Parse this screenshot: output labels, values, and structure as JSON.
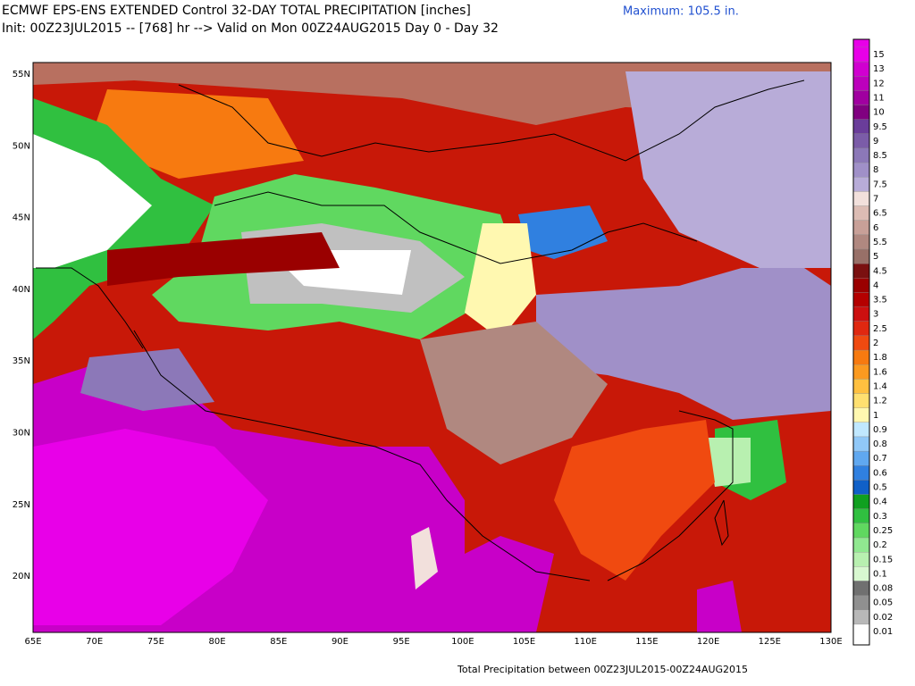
{
  "header": {
    "title_line1": "ECMWF EPS-ENS EXTENDED Control 32-DAY TOTAL PRECIPITATION [inches]",
    "title_line2": "Init: 00Z23JUL2015 -- [768] hr --> Valid on Mon 00Z24AUG2015  Day 0 - Day 32",
    "maximum": "Maximum: 105.5 in."
  },
  "map": {
    "lat_labels": [
      "55N",
      "50N",
      "45N",
      "40N",
      "35N",
      "30N",
      "25N",
      "20N"
    ],
    "lon_labels": [
      "65E",
      "70E",
      "75E",
      "80E",
      "85E",
      "90E",
      "95E",
      "100E",
      "105E",
      "110E",
      "115E",
      "120E",
      "125E",
      "130E"
    ]
  },
  "colorbar": {
    "levels": [
      {
        "label": "15",
        "color": "#e800e8"
      },
      {
        "label": "13",
        "color": "#d000d0"
      },
      {
        "label": "12",
        "color": "#bc00bc"
      },
      {
        "label": "11",
        "color": "#a000a0"
      },
      {
        "label": "10",
        "color": "#800080"
      },
      {
        "label": "9.5",
        "color": "#6a3d9a"
      },
      {
        "label": "9",
        "color": "#7b5ca8"
      },
      {
        "label": "8.5",
        "color": "#8c78b8"
      },
      {
        "label": "8",
        "color": "#a090c8"
      },
      {
        "label": "7.5",
        "color": "#b8acd8"
      },
      {
        "label": "7",
        "color": "#f2e0dc"
      },
      {
        "label": "6.5",
        "color": "#dcbcb4"
      },
      {
        "label": "6",
        "color": "#c8a098"
      },
      {
        "label": "5.5",
        "color": "#b08880"
      },
      {
        "label": "5",
        "color": "#987068"
      },
      {
        "label": "4.5",
        "color": "#7a1010"
      },
      {
        "label": "4",
        "color": "#9a0000"
      },
      {
        "label": "3.5",
        "color": "#b40000"
      },
      {
        "label": "3",
        "color": "#cc1010"
      },
      {
        "label": "2.5",
        "color": "#e02810"
      },
      {
        "label": "2",
        "color": "#f04a10"
      },
      {
        "label": "1.8",
        "color": "#f77a10"
      },
      {
        "label": "1.6",
        "color": "#fb9a20"
      },
      {
        "label": "1.4",
        "color": "#ffc040"
      },
      {
        "label": "1.2",
        "color": "#ffe070"
      },
      {
        "label": "1",
        "color": "#fff8b0"
      },
      {
        "label": "0.9",
        "color": "#c0e8ff"
      },
      {
        "label": "0.8",
        "color": "#90c8f8"
      },
      {
        "label": "0.7",
        "color": "#60a8f0"
      },
      {
        "label": "0.6",
        "color": "#3080e0"
      },
      {
        "label": "0.5",
        "color": "#1060c8"
      },
      {
        "label": "0.4",
        "color": "#10a020"
      },
      {
        "label": "0.3",
        "color": "#30c040"
      },
      {
        "label": "0.25",
        "color": "#60d860"
      },
      {
        "label": "0.2",
        "color": "#90e890"
      },
      {
        "label": "0.15",
        "color": "#b8f0b0"
      },
      {
        "label": "0.1",
        "color": "#d8f8d0"
      },
      {
        "label": "0.08",
        "color": "#707070"
      },
      {
        "label": "0.05",
        "color": "#909090"
      },
      {
        "label": "0.02",
        "color": "#b8b8b8"
      },
      {
        "label": "0.01",
        "color": "#ffffff"
      }
    ]
  },
  "footer": "Total Precipitation between 00Z23JUL2015-00Z24AUG2015"
}
